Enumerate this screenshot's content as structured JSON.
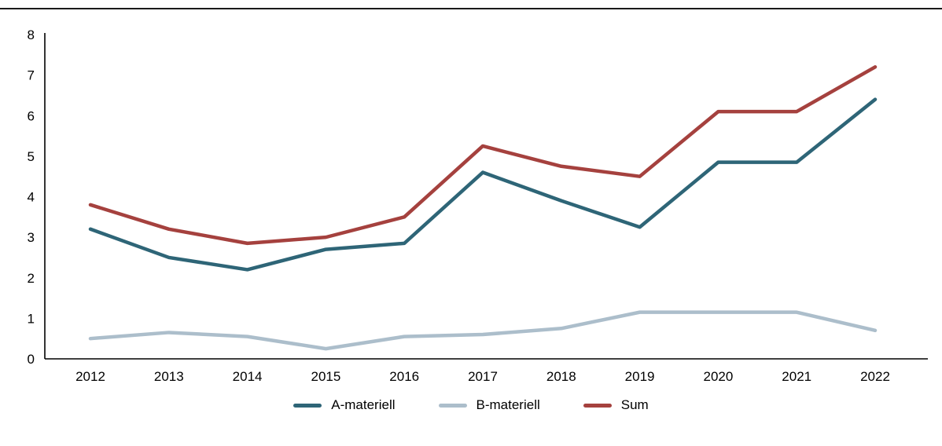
{
  "chart_data": {
    "type": "line",
    "categories": [
      "2012",
      "2013",
      "2014",
      "2015",
      "2016",
      "2017",
      "2018",
      "2019",
      "2020",
      "2021",
      "2022"
    ],
    "series": [
      {
        "name": "A-materiell",
        "color": "#2E6577",
        "values": [
          3.2,
          2.5,
          2.2,
          2.7,
          2.85,
          4.6,
          3.9,
          3.25,
          4.85,
          4.85,
          6.4
        ]
      },
      {
        "name": "B-materiell",
        "color": "#ACBECB",
        "values": [
          0.5,
          0.65,
          0.55,
          0.25,
          0.55,
          0.6,
          0.75,
          1.15,
          1.15,
          1.15,
          0.7
        ]
      },
      {
        "name": "Sum",
        "color": "#A5413E",
        "values": [
          3.8,
          3.2,
          2.85,
          3.0,
          3.5,
          5.25,
          4.75,
          4.5,
          6.1,
          6.1,
          7.2
        ]
      }
    ],
    "title": "",
    "xlabel": "",
    "ylabel": "",
    "ylim": [
      0,
      8
    ],
    "yticks": [
      0,
      1,
      2,
      3,
      4,
      5,
      6,
      7,
      8
    ],
    "grid": false,
    "legend_position": "bottom",
    "colors": {
      "axis": "#000000",
      "top_rule": "#1a1a1a",
      "background": "#ffffff"
    }
  }
}
